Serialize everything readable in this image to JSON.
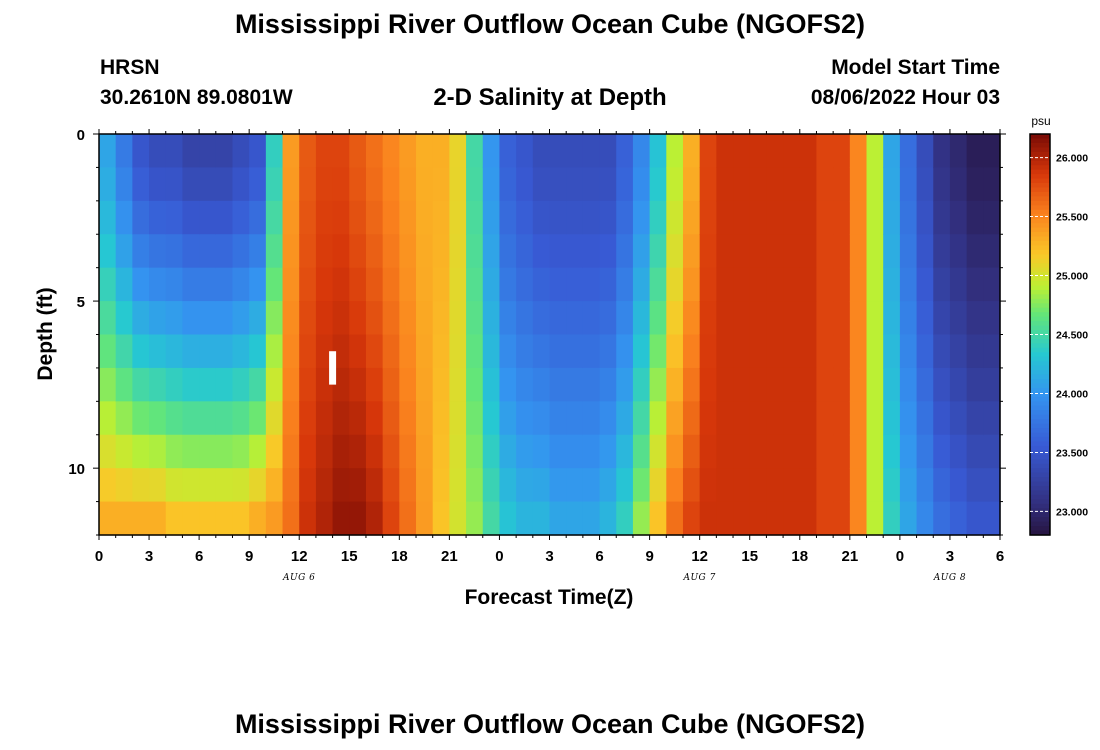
{
  "header": {
    "title": "Mississippi River Outflow Ocean Cube (NGOFS2)",
    "station_id": "HRSN",
    "station_coords": "30.2610N  89.0801W",
    "plot_title": "2-D Salinity at Depth",
    "model_start_label": "Model Start Time",
    "model_start_value": "08/06/2022 Hour 03"
  },
  "footer": {
    "title": "Mississippi River Outflow Ocean Cube (NGOFS2)"
  },
  "chart_data": {
    "type": "heatmap",
    "title": "2-D Salinity at Depth",
    "xlabel": "Forecast Time(Z)",
    "ylabel": "Depth (ft)",
    "x_start_hour": 0,
    "x_end_hour": 54,
    "x_ticks": [
      {
        "hour": 0,
        "label": "0"
      },
      {
        "hour": 3,
        "label": "3"
      },
      {
        "hour": 6,
        "label": "6"
      },
      {
        "hour": 9,
        "label": "9"
      },
      {
        "hour": 12,
        "label": "12"
      },
      {
        "hour": 15,
        "label": "15"
      },
      {
        "hour": 18,
        "label": "18"
      },
      {
        "hour": 21,
        "label": "21"
      },
      {
        "hour": 24,
        "label": "0"
      },
      {
        "hour": 27,
        "label": "3"
      },
      {
        "hour": 30,
        "label": "6"
      },
      {
        "hour": 33,
        "label": "9"
      },
      {
        "hour": 36,
        "label": "12"
      },
      {
        "hour": 39,
        "label": "15"
      },
      {
        "hour": 42,
        "label": "18"
      },
      {
        "hour": 45,
        "label": "21"
      },
      {
        "hour": 48,
        "label": "0"
      },
      {
        "hour": 51,
        "label": "3"
      },
      {
        "hour": 54,
        "label": "6"
      }
    ],
    "date_labels": [
      {
        "hour": 12,
        "label": "AUG 6"
      },
      {
        "hour": 36,
        "label": "AUG 7"
      },
      {
        "hour": 51,
        "label": "AUG 8"
      }
    ],
    "ylim": [
      0,
      12
    ],
    "y_ticks": [
      {
        "value": 0,
        "label": "0"
      },
      {
        "value": 5,
        "label": "5"
      },
      {
        "value": 10,
        "label": "10"
      }
    ],
    "colorbar": {
      "unit": "psu",
      "min": 22.8,
      "max": 26.2,
      "ticks": [
        "23.000",
        "23.500",
        "24.000",
        "24.500",
        "25.000",
        "25.500",
        "26.000"
      ],
      "tick_values": [
        23.0,
        23.5,
        24.0,
        24.5,
        25.0,
        25.5,
        26.0
      ]
    },
    "current_time_marker_hour": 14,
    "current_time_marker_depth": [
      6.5,
      7.5
    ],
    "depth_levels_ft": [
      0.5,
      1.5,
      2.5,
      3.5,
      4.5,
      5.5,
      6.5,
      7.5,
      8.5,
      9.5,
      10.5,
      11.5
    ],
    "column_hours": [
      0,
      1,
      2,
      3,
      4,
      5,
      6,
      7,
      8,
      9,
      10,
      11,
      12,
      13,
      14,
      15,
      16,
      17,
      18,
      19,
      20,
      21,
      22,
      23,
      24,
      25,
      26,
      27,
      28,
      29,
      30,
      31,
      32,
      33,
      34,
      35,
      36,
      37,
      38,
      39,
      40,
      41,
      42,
      43,
      44,
      45,
      46,
      47,
      48,
      49,
      50,
      51,
      52,
      53
    ],
    "surface_salinity_psu": [
      24.1,
      23.8,
      23.5,
      23.4,
      23.4,
      23.3,
      23.3,
      23.3,
      23.4,
      23.5,
      24.4,
      25.4,
      25.7,
      25.8,
      25.8,
      25.7,
      25.6,
      25.5,
      25.4,
      25.3,
      25.3,
      25.1,
      24.5,
      24.0,
      23.6,
      23.5,
      23.4,
      23.4,
      23.4,
      23.4,
      23.4,
      23.6,
      23.9,
      24.3,
      24.9,
      25.3,
      25.8,
      25.9,
      25.9,
      25.9,
      25.9,
      25.9,
      25.9,
      25.8,
      25.8,
      25.5,
      24.9,
      24.1,
      23.7,
      23.4,
      23.1,
      23.0,
      22.9,
      22.9
    ],
    "bottom_salinity_psu": [
      25.3,
      25.3,
      25.3,
      25.3,
      25.2,
      25.2,
      25.2,
      25.2,
      25.2,
      25.3,
      25.4,
      25.6,
      25.9,
      26.0,
      26.1,
      26.1,
      26.0,
      25.8,
      25.6,
      25.4,
      25.2,
      25.0,
      24.8,
      24.5,
      24.3,
      24.2,
      24.2,
      24.1,
      24.1,
      24.1,
      24.2,
      24.4,
      24.8,
      25.2,
      25.6,
      25.8,
      25.9,
      25.9,
      25.9,
      25.9,
      25.9,
      25.9,
      25.9,
      25.8,
      25.8,
      25.5,
      24.9,
      24.4,
      24.1,
      23.9,
      23.7,
      23.6,
      23.5,
      23.5
    ]
  }
}
